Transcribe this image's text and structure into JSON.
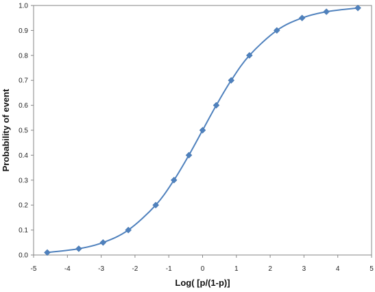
{
  "chart_data": {
    "type": "scatter",
    "xlabel": "Log( [p/(1-p)]",
    "ylabel": "Probability of event",
    "xlim": [
      -5,
      5
    ],
    "ylim": [
      0,
      1
    ],
    "x_ticks": [
      "-5",
      "-4",
      "-3",
      "-2",
      "-1",
      "0",
      "1",
      "2",
      "3",
      "4",
      "5"
    ],
    "y_ticks": [
      "0.0",
      "0.1",
      "0.2",
      "0.3",
      "0.4",
      "0.5",
      "0.6",
      "0.7",
      "0.8",
      "0.9",
      "1.0"
    ],
    "grid": false,
    "marker": "diamond",
    "smooth_line": true,
    "series": [
      {
        "color": "#4f81bd",
        "points": [
          {
            "x": -4.595,
            "y": 0.01
          },
          {
            "x": -3.664,
            "y": 0.025
          },
          {
            "x": -2.944,
            "y": 0.05
          },
          {
            "x": -2.197,
            "y": 0.1
          },
          {
            "x": -1.386,
            "y": 0.2
          },
          {
            "x": -0.847,
            "y": 0.3
          },
          {
            "x": -0.405,
            "y": 0.4
          },
          {
            "x": 0.0,
            "y": 0.5
          },
          {
            "x": 0.405,
            "y": 0.6
          },
          {
            "x": 0.847,
            "y": 0.7
          },
          {
            "x": 1.386,
            "y": 0.8
          },
          {
            "x": 2.197,
            "y": 0.9
          },
          {
            "x": 2.944,
            "y": 0.95
          },
          {
            "x": 3.664,
            "y": 0.975
          },
          {
            "x": 4.595,
            "y": 0.99
          }
        ]
      }
    ]
  }
}
